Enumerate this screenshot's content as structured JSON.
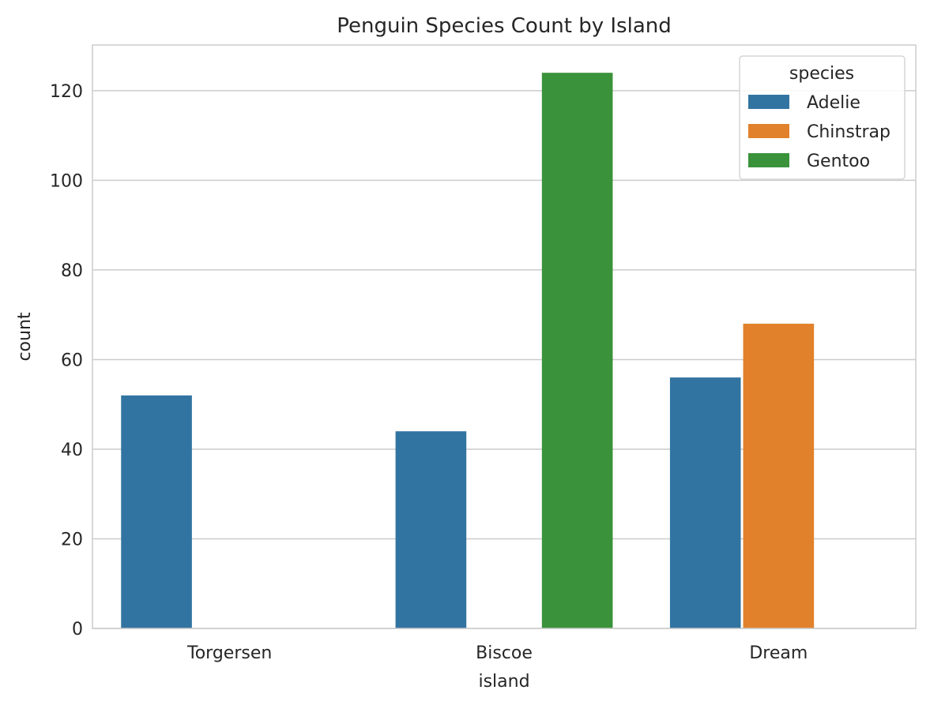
{
  "chart_data": {
    "type": "bar",
    "title": "Penguin Species Count by Island",
    "xlabel": "island",
    "ylabel": "count",
    "categories": [
      "Torgersen",
      "Biscoe",
      "Dream"
    ],
    "series": [
      {
        "name": "Adelie",
        "color": "#3274a1",
        "values": [
          52,
          44,
          56
        ]
      },
      {
        "name": "Chinstrap",
        "color": "#e1812c",
        "values": [
          0,
          0,
          68
        ]
      },
      {
        "name": "Gentoo",
        "color": "#3a923a",
        "values": [
          0,
          124,
          0
        ]
      }
    ],
    "ylim": [
      0,
      130.2
    ],
    "yticks": [
      0,
      20,
      40,
      60,
      80,
      100,
      120
    ],
    "grid": "y",
    "legend": {
      "title": "species",
      "position": "top-right"
    }
  }
}
